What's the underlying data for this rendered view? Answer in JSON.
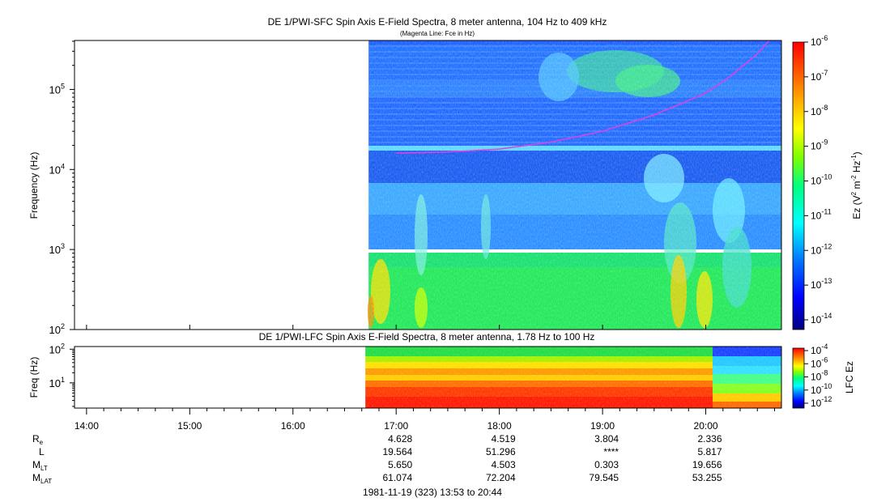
{
  "colors": {
    "magenta_line": "#e040e0",
    "colormap": [
      "#00007f",
      "#0000ff",
      "#007fff",
      "#00ffff",
      "#00ff7f",
      "#00ff00",
      "#7fff00",
      "#ffff00",
      "#ff7f00",
      "#ff0000"
    ]
  },
  "chart_data": [
    {
      "type": "heatmap",
      "title": "DE 1/PWI-SFC  Spin Axis E-Field Spectra, 8 meter antenna, 104 Hz to 409 kHz",
      "subtitle": "(Magenta Line: Fce in Hz)",
      "ylabel": "Frequency (Hz)",
      "yscale": "log",
      "ylim": [
        100,
        409000
      ],
      "y_ticks": [
        {
          "value": 100,
          "base": "10",
          "exp": "2"
        },
        {
          "value": 1000,
          "base": "10",
          "exp": "3"
        },
        {
          "value": 10000,
          "base": "10",
          "exp": "4"
        },
        {
          "value": 100000,
          "base": "10",
          "exp": "5"
        }
      ],
      "xlim": [
        "13:53",
        "20:44"
      ],
      "data_start": "16:44",
      "colorbar": {
        "label_main": "Ez (V",
        "label_sup1": "2",
        "label_mid": " m",
        "label_sup2": "-2",
        "label_mid2": " Hz",
        "label_sup3": "-1",
        "label_end": ")",
        "scale": "log",
        "range": [
          1e-14,
          1e-06
        ],
        "ticks": [
          {
            "base": "10",
            "exp": "-6"
          },
          {
            "base": "10",
            "exp": "-7"
          },
          {
            "base": "10",
            "exp": "-8"
          },
          {
            "base": "10",
            "exp": "-9"
          },
          {
            "base": "10",
            "exp": "-10"
          },
          {
            "base": "10",
            "exp": "-11"
          },
          {
            "base": "10",
            "exp": "-12"
          },
          {
            "base": "10",
            "exp": "-13"
          },
          {
            "base": "10",
            "exp": "-14"
          }
        ]
      },
      "fce_line": {
        "name": "Fce in Hz",
        "x": [
          "17:00",
          "17:30",
          "18:00",
          "18:30",
          "19:00",
          "19:30",
          "20:00",
          "20:15",
          "20:30",
          "20:37"
        ],
        "y": [
          16000,
          16500,
          18000,
          22000,
          30000,
          48000,
          90000,
          150000,
          280000,
          409000
        ]
      }
    },
    {
      "type": "heatmap",
      "title": "DE 1/PWI-LFC  Spin Axis E-Field Spectra, 8 meter antenna, 1.78 Hz to 100 Hz",
      "ylabel": "Freq (Hz)",
      "yscale": "log",
      "ylim": [
        1.78,
        120
      ],
      "y_ticks": [
        {
          "value": 10,
          "base": "10",
          "exp": "1"
        },
        {
          "value": 100,
          "base": "10",
          "exp": "2"
        }
      ],
      "xlim": [
        "13:53",
        "20:44"
      ],
      "data_start": "16:44",
      "colorbar": {
        "label": "LFC Ez",
        "scale": "log",
        "range": [
          1e-12,
          0.0001
        ],
        "ticks": [
          {
            "base": "10",
            "exp": "-4"
          },
          {
            "base": "10",
            "exp": "-6"
          },
          {
            "base": "10",
            "exp": "-8"
          },
          {
            "base": "10",
            "exp": "-10"
          },
          {
            "base": "10",
            "exp": "-12"
          }
        ]
      }
    }
  ],
  "time_axis": {
    "ticks": [
      "14:00",
      "15:00",
      "16:00",
      "17:00",
      "18:00",
      "19:00",
      "20:00"
    ]
  },
  "ephemeris": {
    "rows": [
      {
        "label": "R",
        "sub": "e",
        "values": [
          "4.628",
          "4.519",
          "3.804",
          "2.336"
        ]
      },
      {
        "label": "L",
        "sub": "",
        "values": [
          "19.564",
          "51.296",
          "****",
          "5.817"
        ]
      },
      {
        "label": "M",
        "sub": "LT",
        "values": [
          "5.650",
          "4.503",
          "0.303",
          "19.656"
        ]
      },
      {
        "label": "M",
        "sub": "LAT",
        "values": [
          "61.074",
          "72.204",
          "79.545",
          "53.255"
        ]
      }
    ]
  },
  "footer": "1981-11-19 (323) 13:53 to 20:44"
}
